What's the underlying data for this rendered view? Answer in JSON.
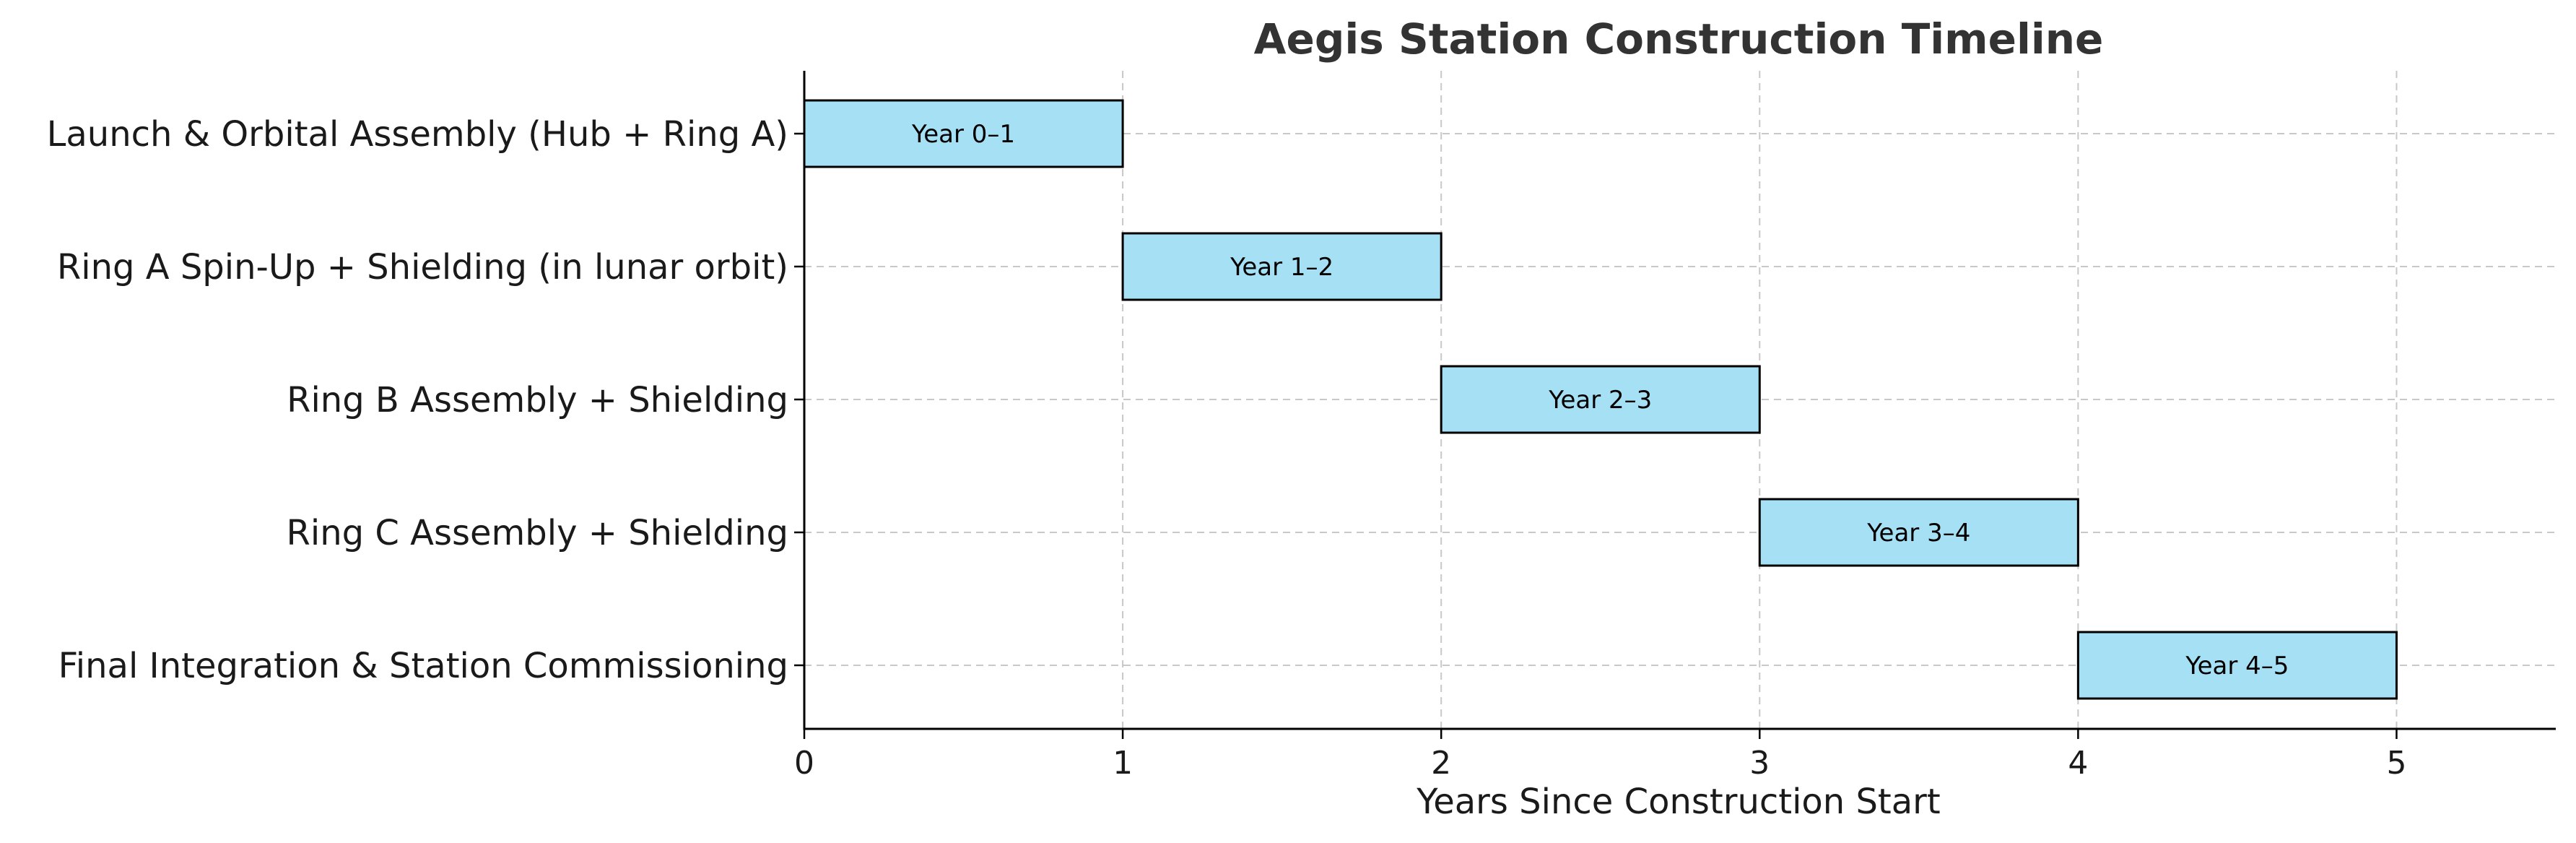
{
  "chart_data": {
    "type": "bar",
    "orientation": "horizontal",
    "title": "Aegis Station Construction Timeline",
    "xlabel": "Years Since Construction Start",
    "ylabel": "",
    "xlim": [
      0,
      5.5
    ],
    "xticks": [
      0,
      1,
      2,
      3,
      4,
      5
    ],
    "grid": true,
    "bar_color": "#a6e0f5",
    "tasks": [
      {
        "label": "Launch & Orbital Assembly (Hub + Ring A)",
        "start": 0,
        "end": 1,
        "bar_label": "Year 0–1"
      },
      {
        "label": "Ring A Spin-Up + Shielding (in lunar orbit)",
        "start": 1,
        "end": 2,
        "bar_label": "Year 1–2"
      },
      {
        "label": "Ring B Assembly + Shielding",
        "start": 2,
        "end": 3,
        "bar_label": "Year 2–3"
      },
      {
        "label": "Ring C Assembly + Shielding",
        "start": 3,
        "end": 4,
        "bar_label": "Year 3–4"
      },
      {
        "label": "Final Integration & Station Commissioning",
        "start": 4,
        "end": 5,
        "bar_label": "Year 4–5"
      }
    ]
  }
}
